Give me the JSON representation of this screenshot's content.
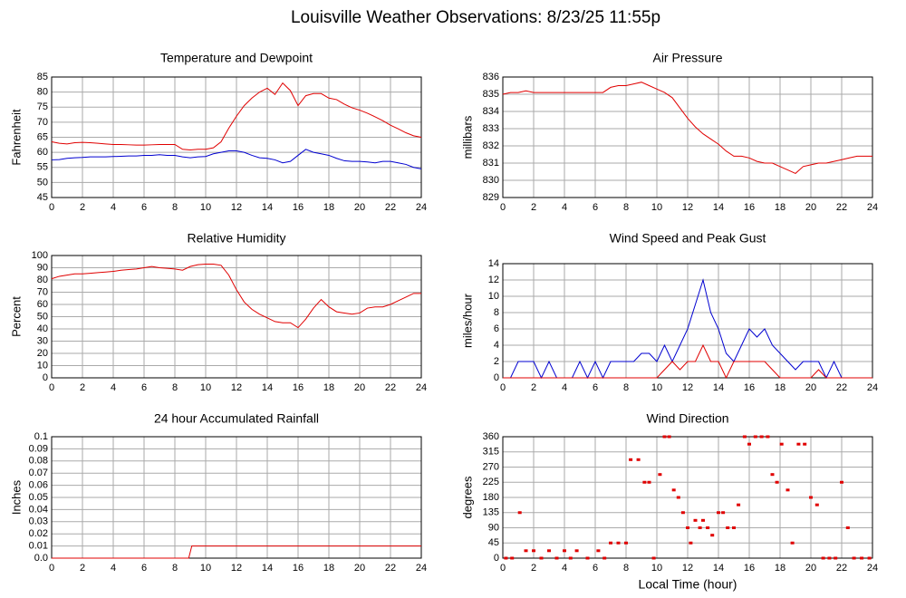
{
  "title": "Louisville Weather Observations: 8/23/25 11:55p",
  "chart_data": [
    {
      "type": "line",
      "title": "Temperature and Dewpoint",
      "y_label": "Fahrenheit",
      "x": [
        0,
        0.5,
        1,
        1.5,
        2,
        2.5,
        3,
        3.5,
        4,
        4.5,
        5,
        5.5,
        6,
        6.5,
        7,
        7.5,
        8,
        8.5,
        9,
        9.5,
        10,
        10.5,
        11,
        11.5,
        12,
        12.5,
        13,
        13.5,
        14,
        14.5,
        15,
        15.5,
        16,
        16.5,
        17,
        17.5,
        18,
        18.5,
        19,
        19.5,
        20,
        20.5,
        21,
        21.5,
        22,
        22.5,
        23,
        23.5,
        24
      ],
      "series": [
        {
          "color": "#e00000",
          "values": [
            63.5,
            63,
            62.8,
            63.2,
            63.3,
            63.2,
            63,
            62.8,
            62.6,
            62.6,
            62.5,
            62.4,
            62.4,
            62.5,
            62.6,
            62.6,
            62.6,
            61,
            60.8,
            61,
            61,
            61.5,
            63.5,
            68,
            72,
            75.5,
            78,
            80,
            81.3,
            79.2,
            83,
            80.5,
            75.5,
            78.8,
            79.5,
            79.5,
            78,
            77.5,
            76,
            74.8,
            74,
            73,
            71.8,
            70.5,
            69,
            67.8,
            66.5,
            65.5,
            65
          ]
        },
        {
          "color": "#0000d0",
          "values": [
            57.5,
            57.6,
            58,
            58.2,
            58.3,
            58.5,
            58.5,
            58.5,
            58.6,
            58.7,
            58.8,
            58.8,
            59,
            59,
            59.2,
            59,
            59,
            58.5,
            58.2,
            58.5,
            58.6,
            59.5,
            60,
            60.5,
            60.5,
            60,
            59,
            58.2,
            58,
            57.5,
            56.5,
            57,
            59,
            61,
            60,
            59.5,
            59,
            58,
            57.2,
            57,
            57,
            56.8,
            56.5,
            57,
            57,
            56.5,
            56,
            55,
            54.5
          ]
        }
      ],
      "xlim": [
        0,
        24
      ],
      "xticks": [
        0,
        2,
        4,
        6,
        8,
        10,
        12,
        14,
        16,
        18,
        20,
        22,
        24
      ],
      "ylim": [
        45,
        85
      ],
      "yticks": [
        45,
        50,
        55,
        60,
        65,
        70,
        75,
        80,
        85
      ],
      "grid": true
    },
    {
      "type": "line",
      "title": "Air Pressure",
      "y_label": "millibars",
      "x": [
        0,
        0.5,
        1,
        1.5,
        2,
        2.5,
        3,
        3.5,
        4,
        4.5,
        5,
        5.5,
        6,
        6.5,
        7,
        7.5,
        8,
        8.5,
        9,
        9.5,
        10,
        10.5,
        11,
        11.5,
        12,
        12.5,
        13,
        13.5,
        14,
        14.5,
        15,
        15.5,
        16,
        16.5,
        17,
        17.5,
        18,
        18.5,
        19,
        19.5,
        20,
        20.5,
        21,
        21.5,
        22,
        22.5,
        23,
        23.5,
        24
      ],
      "series": [
        {
          "color": "#e00000",
          "values": [
            835,
            835.1,
            835.1,
            835.2,
            835.1,
            835.1,
            835.1,
            835.1,
            835.1,
            835.1,
            835.1,
            835.1,
            835.1,
            835.1,
            835.4,
            835.5,
            835.5,
            835.6,
            835.7,
            835.5,
            835.3,
            835.1,
            834.8,
            834.2,
            833.6,
            833.1,
            832.7,
            832.4,
            832.1,
            831.7,
            831.4,
            831.4,
            831.3,
            831.1,
            831,
            831,
            830.8,
            830.6,
            830.4,
            830.8,
            830.9,
            831,
            831,
            831.1,
            831.2,
            831.3,
            831.4,
            831.4,
            831.4
          ]
        }
      ],
      "xlim": [
        0,
        24
      ],
      "xticks": [
        0,
        2,
        4,
        6,
        8,
        10,
        12,
        14,
        16,
        18,
        20,
        22,
        24
      ],
      "ylim": [
        829,
        836
      ],
      "yticks": [
        829,
        830,
        831,
        832,
        833,
        834,
        835,
        836
      ],
      "grid": true
    },
    {
      "type": "line",
      "title": "Relative Humidity",
      "y_label": "Percent",
      "x": [
        0,
        0.5,
        1,
        1.5,
        2,
        2.5,
        3,
        3.5,
        4,
        4.5,
        5,
        5.5,
        6,
        6.5,
        7,
        7.5,
        8,
        8.5,
        9,
        9.5,
        10,
        10.5,
        11,
        11.5,
        12,
        12.5,
        13,
        13.5,
        14,
        14.5,
        15,
        15.5,
        16,
        16.5,
        17,
        17.5,
        18,
        18.5,
        19,
        19.5,
        20,
        20.5,
        21,
        21.5,
        22,
        22.5,
        23,
        23.5,
        24
      ],
      "series": [
        {
          "color": "#e00000",
          "values": [
            81,
            83,
            84,
            85,
            85,
            85.5,
            86,
            86.5,
            87,
            88,
            88.5,
            89,
            90,
            91,
            90,
            89.5,
            89,
            88,
            91,
            92.5,
            93,
            93,
            92,
            84,
            72,
            62,
            56,
            52,
            49,
            46,
            45,
            45,
            41,
            48,
            57,
            64,
            58,
            54,
            53,
            52,
            53,
            57,
            58,
            58,
            60,
            63,
            66,
            69,
            69
          ]
        }
      ],
      "xlim": [
        0,
        24
      ],
      "xticks": [
        0,
        2,
        4,
        6,
        8,
        10,
        12,
        14,
        16,
        18,
        20,
        22,
        24
      ],
      "ylim": [
        0,
        100
      ],
      "yticks": [
        0,
        10,
        20,
        30,
        40,
        50,
        60,
        70,
        80,
        90,
        100
      ],
      "grid": true
    },
    {
      "type": "line",
      "title": "Wind Speed and Peak Gust",
      "y_label": "miles/hour",
      "x": [
        0,
        0.5,
        1,
        1.5,
        2,
        2.5,
        3,
        3.5,
        4,
        4.5,
        5,
        5.5,
        6,
        6.5,
        7,
        7.5,
        8,
        8.5,
        9,
        9.5,
        10,
        10.5,
        11,
        11.5,
        12,
        12.5,
        13,
        13.5,
        14,
        14.5,
        15,
        15.5,
        16,
        16.5,
        17,
        17.5,
        18,
        18.5,
        19,
        19.5,
        20,
        20.5,
        21,
        21.5,
        22,
        22.5,
        23,
        23.5,
        24
      ],
      "series": [
        {
          "color": "#0000d0",
          "values": [
            0,
            0,
            2,
            2,
            2,
            0,
            2,
            0,
            0,
            0,
            2,
            0,
            2,
            0,
            2,
            2,
            2,
            2,
            3,
            3,
            2,
            4,
            2,
            4,
            6,
            9,
            12,
            8,
            6,
            3,
            2,
            4,
            6,
            5,
            6,
            4,
            3,
            2,
            1,
            2,
            2,
            2,
            0,
            2,
            0,
            0,
            0,
            0,
            0
          ]
        },
        {
          "color": "#e00000",
          "values": [
            0,
            0,
            0,
            0,
            0,
            0,
            0,
            0,
            0,
            0,
            0,
            0,
            0,
            0,
            0,
            0,
            0,
            0,
            0,
            0,
            0,
            1,
            2,
            1,
            2,
            2,
            4,
            2,
            2,
            0,
            2,
            2,
            2,
            2,
            2,
            1,
            0,
            0,
            0,
            0,
            0,
            1,
            0,
            0,
            0,
            0,
            0,
            0,
            0
          ]
        }
      ],
      "xlim": [
        0,
        24
      ],
      "xticks": [
        0,
        2,
        4,
        6,
        8,
        10,
        12,
        14,
        16,
        18,
        20,
        22,
        24
      ],
      "ylim": [
        0,
        14
      ],
      "yticks": [
        0,
        2,
        4,
        6,
        8,
        10,
        12,
        14
      ],
      "grid": true
    },
    {
      "type": "line",
      "title": "24 hour Accumulated Rainfall",
      "y_label": "Inches",
      "x": [
        0,
        8.9,
        9.1,
        24
      ],
      "series": [
        {
          "color": "#e00000",
          "values": [
            0,
            0,
            0.01,
            0.01
          ]
        }
      ],
      "xlim": [
        0,
        24
      ],
      "xticks": [
        0,
        2,
        4,
        6,
        8,
        10,
        12,
        14,
        16,
        18,
        20,
        22,
        24
      ],
      "ylim": [
        0,
        0.1
      ],
      "yticks": [
        {
          "value": 0,
          "label": "0.0"
        },
        0.01,
        0.02,
        0.03,
        0.04,
        0.05,
        0.06,
        0.07,
        0.08,
        0.09,
        0.1
      ],
      "grid": true
    },
    {
      "type": "scatter",
      "title": "Wind Direction",
      "y_label": "degrees",
      "x_label": "Local Time (hour)",
      "x": [
        0.2,
        0.6,
        1.1,
        1.5,
        2,
        2.5,
        3,
        3.5,
        4,
        4.4,
        4.8,
        5.5,
        6.2,
        6.6,
        7,
        7.5,
        8,
        8.3,
        8.8,
        9.2,
        9.5,
        9.8,
        10.2,
        10.5,
        10.8,
        11.1,
        11.4,
        11.7,
        12,
        12.2,
        12.5,
        12.8,
        13,
        13.3,
        13.6,
        14,
        14.3,
        14.6,
        15,
        15.3,
        15.7,
        16,
        16.4,
        16.8,
        17.2,
        17.5,
        17.8,
        18.1,
        18.5,
        18.8,
        19.2,
        19.6,
        20,
        20.4,
        20.8,
        21.2,
        21.6,
        22,
        22.4,
        22.8,
        23.3,
        23.8
      ],
      "series": [
        {
          "color": "#e00000",
          "values": [
            0,
            0,
            135,
            22,
            22,
            0,
            22,
            0,
            22,
            0,
            22,
            0,
            22,
            0,
            45,
            45,
            45,
            292,
            292,
            225,
            225,
            0,
            248,
            360,
            360,
            202,
            180,
            135,
            90,
            45,
            112,
            90,
            112,
            90,
            68,
            135,
            135,
            90,
            90,
            158,
            360,
            338,
            360,
            360,
            360,
            248,
            225,
            338,
            202,
            45,
            338,
            338,
            180,
            158,
            0,
            0,
            0,
            225,
            90,
            0,
            0,
            0
          ]
        }
      ],
      "xlim": [
        0,
        24
      ],
      "xticks": [
        0,
        2,
        4,
        6,
        8,
        10,
        12,
        14,
        16,
        18,
        20,
        22,
        24
      ],
      "ylim": [
        0,
        360
      ],
      "yticks": [
        0,
        45,
        90,
        135,
        180,
        225,
        270,
        315,
        360
      ],
      "grid": true
    }
  ]
}
